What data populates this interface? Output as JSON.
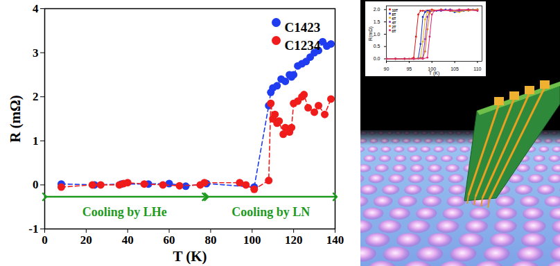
{
  "chart_data": [
    {
      "type": "scatter",
      "x_label": "T (K)",
      "y_label": "R (mΩ)",
      "xlim": [
        0,
        140
      ],
      "xticks": [
        0,
        20,
        40,
        60,
        80,
        100,
        120,
        140
      ],
      "ylim": [
        -1,
        4
      ],
      "yticks": [
        -1,
        0,
        1,
        2,
        3,
        4
      ],
      "grid": false,
      "legend": "upper right",
      "line_style": "dashed",
      "marker": "circle",
      "series": [
        {
          "name": "C1423",
          "color": "#1f3cf0",
          "x": [
            8,
            24,
            37,
            50,
            60,
            68,
            78,
            101,
            108,
            109,
            110,
            112,
            114,
            116,
            118,
            119,
            120,
            122,
            124,
            126,
            128,
            130,
            132,
            134,
            136,
            138
          ],
          "values": [
            0.02,
            0.0,
            0.02,
            0.02,
            0.03,
            -0.03,
            0.03,
            -0.05,
            1.8,
            2.1,
            2.2,
            2.25,
            2.4,
            2.35,
            2.5,
            2.45,
            2.5,
            2.7,
            2.75,
            2.8,
            2.9,
            3.0,
            3.05,
            3.25,
            3.15,
            3.2
          ]
        },
        {
          "name": "C1234",
          "color": "#f01c1c",
          "x": [
            8,
            23,
            27,
            36,
            38,
            40,
            48,
            57,
            65,
            75,
            77,
            94,
            97,
            101,
            108,
            109,
            110,
            111,
            112,
            113,
            115,
            116,
            118,
            119,
            120,
            122,
            124,
            125,
            127,
            130,
            132,
            135,
            138
          ],
          "values": [
            -0.05,
            0.0,
            0.0,
            0.0,
            0.03,
            0.05,
            0.02,
            0.0,
            -0.02,
            0.0,
            0.05,
            0.05,
            0.0,
            -0.1,
            0.1,
            1.85,
            1.5,
            1.6,
            1.4,
            1.45,
            1.15,
            1.3,
            1.2,
            1.3,
            1.85,
            1.9,
            2.0,
            2.05,
            1.75,
            1.65,
            1.8,
            1.6,
            1.95
          ]
        }
      ],
      "annotations": [
        {
          "text": "Cooling by LHe",
          "x": [
            0,
            77
          ],
          "y": -0.27,
          "color": "#1e9a1e"
        },
        {
          "text": "Cooling by LN",
          "x": [
            78,
            140
          ],
          "y": -0.27,
          "color": "#1e9a1e"
        }
      ]
    },
    {
      "type": "line",
      "x_label": "T (K)",
      "y_label": "R(mΩ)",
      "xlim": [
        90,
        111
      ],
      "xticks": [
        90,
        95,
        100,
        105,
        110
      ],
      "ylim": [
        -0.1,
        2.15
      ],
      "yticks": [
        {
          "value": 0,
          "label": "0.0"
        },
        {
          "value": 0.5,
          "label": "0.5"
        },
        {
          "value": 1,
          "label": "1.0"
        },
        {
          "value": 1.5,
          "label": "1.5"
        },
        {
          "value": 2,
          "label": "2.0"
        }
      ],
      "grid": false,
      "legend": "upper left",
      "marker": "circle",
      "series": [
        {
          "name": "10T",
          "color": "#e01010",
          "x": [
            90,
            92,
            94,
            95,
            96,
            96.5,
            97,
            97.5,
            98,
            100,
            102,
            104,
            106,
            108,
            110
          ],
          "values": [
            0,
            0,
            0,
            0,
            0.05,
            0.9,
            1.8,
            1.95,
            1.95,
            2.0,
            1.95,
            2.0,
            1.95,
            2.0,
            2.0
          ]
        },
        {
          "name": "8T",
          "color": "#2030d0",
          "x": [
            90,
            92,
            94,
            96,
            97,
            97.5,
            98,
            98.5,
            99,
            101,
            103,
            105,
            107,
            109,
            110
          ],
          "values": [
            0,
            0,
            0,
            0,
            0.02,
            0.6,
            1.7,
            1.9,
            1.95,
            1.95,
            2.0,
            1.9,
            1.95,
            2.0,
            2.0
          ]
        },
        {
          "name": "6T",
          "color": "#e8b010",
          "x": [
            90,
            92,
            94,
            96,
            97.5,
            98,
            98.5,
            99,
            100,
            102,
            104,
            106,
            108,
            110
          ],
          "values": [
            0,
            0,
            0,
            0,
            0.05,
            0.7,
            1.6,
            1.9,
            1.95,
            2.0,
            1.95,
            1.9,
            2.0,
            2.0
          ]
        },
        {
          "name": "4T",
          "color": "#8030c0",
          "x": [
            90,
            92,
            94,
            96,
            98,
            98.5,
            99,
            99.5,
            100,
            102,
            104,
            106,
            108,
            110
          ],
          "values": [
            0,
            0,
            0,
            0,
            0.05,
            0.8,
            1.7,
            1.9,
            1.95,
            1.95,
            2.0,
            1.95,
            2.0,
            1.95
          ]
        },
        {
          "name": "2T",
          "color": "#e07020",
          "x": [
            90,
            92,
            94,
            96,
            98,
            98.5,
            99,
            99.5,
            100,
            102,
            104,
            106,
            108,
            110
          ],
          "values": [
            0,
            0,
            0,
            0,
            0.02,
            0.3,
            1.2,
            1.85,
            1.95,
            2.0,
            1.95,
            2.0,
            1.95,
            2.0
          ]
        },
        {
          "name": "0T",
          "color": "#e0206a",
          "x": [
            90,
            92,
            94,
            96,
            98,
            99,
            99.5,
            100,
            100.5,
            102,
            104,
            106,
            108,
            110
          ],
          "values": [
            0,
            0,
            0,
            0,
            0,
            0.05,
            0.9,
            1.8,
            1.95,
            2.0,
            1.95,
            2.0,
            2.0,
            1.95
          ]
        }
      ]
    }
  ]
}
